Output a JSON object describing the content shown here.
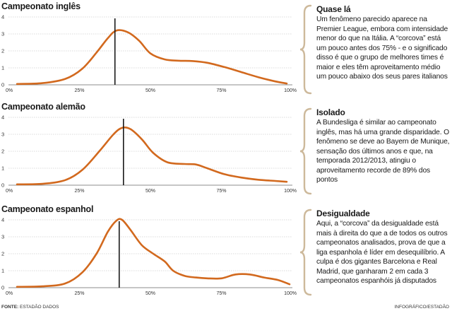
{
  "colors": {
    "curve": "#D2691E",
    "marker": "#1a1a1a",
    "brace": "#cdb99b",
    "text": "#1a1a1a"
  },
  "x_tick_labels": [
    "0%",
    "25%",
    "50%",
    "75%",
    "100%"
  ],
  "chart_data": [
    {
      "type": "line",
      "title": "Campeonato inglês",
      "xlabel": "",
      "ylabel": "",
      "xlim": [
        0,
        100
      ],
      "ylim": [
        0,
        4
      ],
      "yticks": [
        "0",
        "1",
        "2",
        "3",
        "4"
      ],
      "series": [
        {
          "name": "Campeonato inglês",
          "x": [
            3,
            12,
            20,
            26,
            31,
            35,
            38,
            42,
            46,
            50,
            55,
            60,
            65,
            70,
            76,
            82,
            88,
            94,
            98
          ],
          "y": [
            0.05,
            0.1,
            0.35,
            0.95,
            1.9,
            2.75,
            3.2,
            3.1,
            2.6,
            1.85,
            1.5,
            1.42,
            1.4,
            1.3,
            1.05,
            0.75,
            0.45,
            0.2,
            0.08
          ]
        }
      ],
      "marker_x": 37.5
    },
    {
      "type": "line",
      "title": "Campeonato alemão",
      "xlabel": "",
      "ylabel": "",
      "xlim": [
        0,
        100
      ],
      "ylim": [
        0,
        4
      ],
      "yticks": [
        "0",
        "1",
        "2",
        "3",
        "4"
      ],
      "series": [
        {
          "name": "Campeonato alemão",
          "x": [
            3,
            12,
            20,
            26,
            32,
            37,
            40,
            43,
            47,
            51,
            56,
            62,
            66,
            70,
            76,
            82,
            88,
            94,
            98
          ],
          "y": [
            0.05,
            0.08,
            0.3,
            0.9,
            2.0,
            3.0,
            3.38,
            3.3,
            2.7,
            1.9,
            1.35,
            1.25,
            1.22,
            1.0,
            0.65,
            0.45,
            0.32,
            0.25,
            0.2
          ]
        }
      ],
      "marker_x": 40.5
    },
    {
      "type": "line",
      "title": "Campeonato espanhol",
      "xlabel": "",
      "ylabel": "",
      "xlim": [
        0,
        100
      ],
      "ylim": [
        0,
        4
      ],
      "yticks": [
        "0",
        "1",
        "2",
        "3",
        "4"
      ],
      "series": [
        {
          "name": "Campeonato espanhol",
          "x": [
            3,
            12,
            20,
            26,
            31,
            35,
            38,
            40,
            43,
            47,
            51,
            55,
            58,
            62,
            66,
            70,
            75,
            80,
            85,
            90,
            95,
            99
          ],
          "y": [
            0.05,
            0.08,
            0.25,
            0.9,
            2.0,
            3.3,
            3.95,
            4.0,
            3.4,
            2.5,
            2.0,
            1.55,
            1.0,
            0.7,
            0.6,
            0.55,
            0.55,
            0.78,
            0.78,
            0.6,
            0.45,
            0.2
          ]
        }
      ],
      "marker_x": 39
    }
  ],
  "notes": [
    {
      "title": "Quase lá",
      "body": "Um fenômeno parecido aparece na Premier League, embora com intensidade menor do que na Itália. A “corcova” está um pouco antes dos 75% - e o significado disso é que o grupo de melhores times é maior e eles têm aproveitamento médio um pouco abaixo dos seus pares italianos"
    },
    {
      "title": "Isolado",
      "body": "A Bundesliga é similar ao campeonato inglês, mas há uma grande disparidade. O fenômeno se deve ao Bayern de Munique, sensação dos últimos anos e que, na temporada 2012/2013, atingiu o aproveitamento recorde de 89% dos pontos"
    },
    {
      "title": "Desigualdade",
      "body": "Aqui, a “corcova” da desigualdade está mais à direita do que a de todos os outros campeonatos analisados, prova de que a liga espanhola é líder em desequilíbrio. A culpa é dos gigantes Barcelona e Real Madrid, que ganharam 2 em cada 3 campeonatos espanhóis já disputados"
    }
  ],
  "footer": {
    "source_label": "FONTE:",
    "source_text": "ESTADÃO DADOS",
    "credit": "INFOGRÁFICO/ESTADÃO"
  }
}
